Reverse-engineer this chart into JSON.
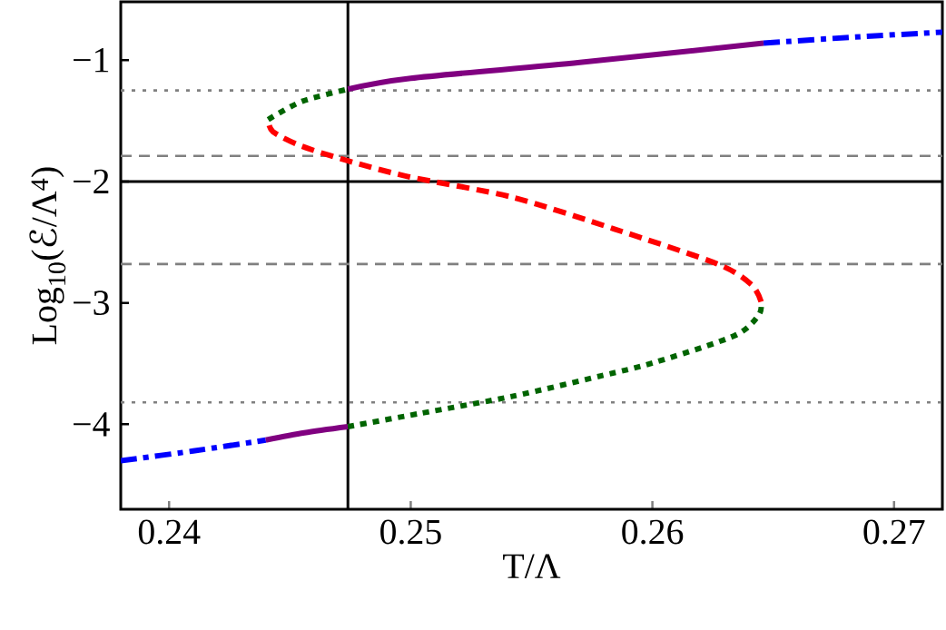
{
  "chart_data": {
    "type": "line",
    "xlabel": "T/Λ",
    "ylabel": "Log$_{10}$(ℰ/Λ$^{4}$)",
    "xlim": [
      0.238,
      0.272
    ],
    "ylim": [
      -4.7,
      -0.52
    ],
    "xticks": [
      0.24,
      0.25,
      0.26,
      0.27
    ],
    "yticks": [
      {
        "value": -4,
        "label": "−4"
      },
      {
        "value": -3,
        "label": "−3"
      },
      {
        "value": -2,
        "label": "−2"
      },
      {
        "value": -1,
        "label": "−1"
      }
    ],
    "series": [
      {
        "color": "#0000ff",
        "line_style": "dashdot",
        "x": [
          0.238,
          0.241,
          0.244
        ],
        "values": [
          -4.3,
          -4.22,
          -4.13
        ]
      },
      {
        "color": "#800080",
        "line_style": "solid",
        "x": [
          0.244,
          0.2456,
          0.2474
        ],
        "values": [
          -4.13,
          -4.07,
          -4.02
        ]
      },
      {
        "color": "#006400",
        "line_style": "dotted",
        "x": [
          0.2474,
          0.2504,
          0.2542,
          0.2579,
          0.2601,
          0.2634,
          0.2644,
          0.2645
        ],
        "values": [
          -4.02,
          -3.91,
          -3.77,
          -3.6,
          -3.49,
          -3.27,
          -3.1,
          -2.99
        ]
      },
      {
        "color": "#ff0000",
        "line_style": "dashed",
        "x": [
          0.2645,
          0.2641,
          0.2627,
          0.2584,
          0.2542,
          0.2499,
          0.2474,
          0.2455,
          0.2443,
          0.2441
        ],
        "values": [
          -2.99,
          -2.85,
          -2.68,
          -2.39,
          -2.13,
          -1.96,
          -1.83,
          -1.71,
          -1.59,
          -1.49
        ]
      },
      {
        "color": "#006400",
        "line_style": "dotted",
        "x": [
          0.2441,
          0.2455,
          0.2474
        ],
        "values": [
          -1.49,
          -1.34,
          -1.24
        ]
      },
      {
        "color": "#800080",
        "line_style": "solid",
        "x": [
          0.2474,
          0.25,
          0.257,
          0.2646
        ],
        "values": [
          -1.24,
          -1.15,
          -1.02,
          -0.86
        ]
      },
      {
        "color": "#0000ff",
        "line_style": "dashdot",
        "x": [
          0.2646,
          0.2684,
          0.272
        ],
        "values": [
          -0.86,
          -0.81,
          -0.77
        ]
      }
    ],
    "ref_lines": [
      {
        "axis": "x",
        "value": 0.2474,
        "color": "#000000",
        "line_style": "solid"
      },
      {
        "axis": "y",
        "value": -2,
        "color": "#000000",
        "line_style": "solid"
      },
      {
        "axis": "y",
        "value": -1.25,
        "color": "#808080",
        "line_style": "dotted"
      },
      {
        "axis": "y",
        "value": -1.79,
        "color": "#808080",
        "line_style": "dashed"
      },
      {
        "axis": "y",
        "value": -2.68,
        "color": "#808080",
        "line_style": "dashed"
      },
      {
        "axis": "y",
        "value": -3.82,
        "color": "#808080",
        "line_style": "dotted"
      }
    ]
  }
}
